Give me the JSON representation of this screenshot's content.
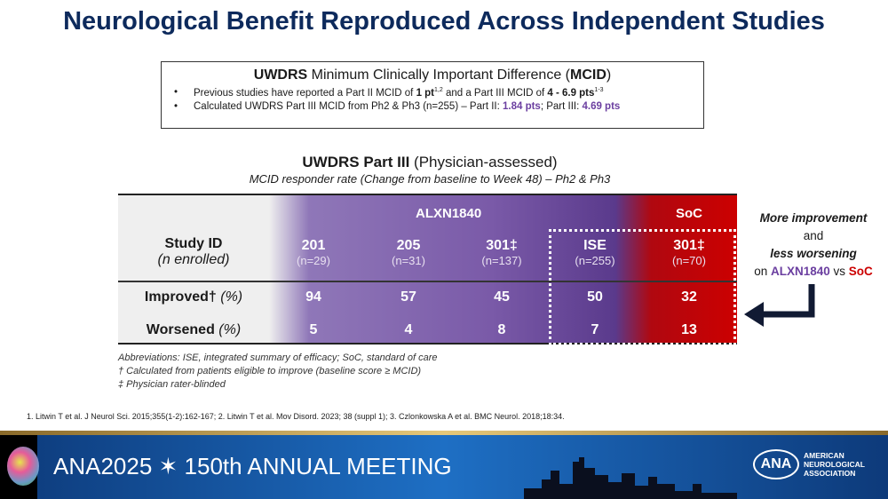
{
  "title": "Neurological Benefit Reproduced Across Independent Studies",
  "mcid_box": {
    "heading_bold": "UWDRS",
    "heading_rest": " Minimum Clinically Important Difference (",
    "heading_mcid": "MCID",
    "heading_close": ")",
    "bullet1": {
      "a": "Previous studies have reported a Part II MCID of ",
      "b": "1 pt",
      "c": "1,2",
      "d": " and a Part III MCID of ",
      "e": "4 - 6.9 pts",
      "f": "1-3"
    },
    "bullet2": {
      "a": "Calculated UWDRS Part III MCID from Ph2 & Ph3 (n=255) – Part II: ",
      "b": "1.84 pts",
      "c": "; Part III: ",
      "d": "4.69 pts"
    }
  },
  "subtitle_bold": "UWDRS Part III",
  "subtitle_rest": " (Physician-assessed)",
  "subtitle2": "MCID responder rate (Change from baseline to Week 48) – Ph2 & Ph3",
  "table": {
    "group_alxn": "ALXN1840",
    "group_soc": "SoC",
    "row_header": {
      "label": "Study ID",
      "sub": "(n enrolled)"
    },
    "columns": [
      {
        "id": "201",
        "n": "(n=29)"
      },
      {
        "id": "205",
        "n": "(n=31)"
      },
      {
        "id": "301‡",
        "n": "(n=137)"
      },
      {
        "id": "ISE",
        "n": "(n=255)"
      },
      {
        "id": "301‡",
        "n": "(n=70)"
      }
    ],
    "rows": [
      {
        "label": "Improved†",
        "unit": " (%)",
        "values": [
          "94",
          "57",
          "45",
          "50",
          "32"
        ]
      },
      {
        "label": "Worsened",
        "unit": " (%)",
        "values": [
          "5",
          "4",
          "8",
          "7",
          "13"
        ]
      }
    ]
  },
  "notes": [
    "Abbreviations: ISE, integrated summary of efficacy; SoC, standard of care",
    "† Calculated from patients eligible to improve (baseline score ≥ MCID)",
    "‡ Physician rater-blinded"
  ],
  "side": {
    "l1": "More improvement",
    "l2": "and",
    "l3": "less worsening",
    "l4a": "on ",
    "l4b": "ALXN1840",
    "l4c": " vs ",
    "l4d": "SoC"
  },
  "references": "1. Litwin T et al. J Neurol Sci. 2015;355(1-2):162-167; 2. Litwin T et al. Mov Disord. 2023; 38 (suppl 1); 3. Czlonkowska A et al. BMC Neurol. 2018;18:34.",
  "banner": {
    "meeting": "ANA2025 ✶ 150th ANNUAL MEETING",
    "logo": "ANA",
    "org": "AMERICAN NEUROLOGICAL ASSOCIATION"
  },
  "colors": {
    "title": "#0d2a5c",
    "alxn_purple": "#6b3fa0",
    "soc_red": "#cc0000"
  }
}
